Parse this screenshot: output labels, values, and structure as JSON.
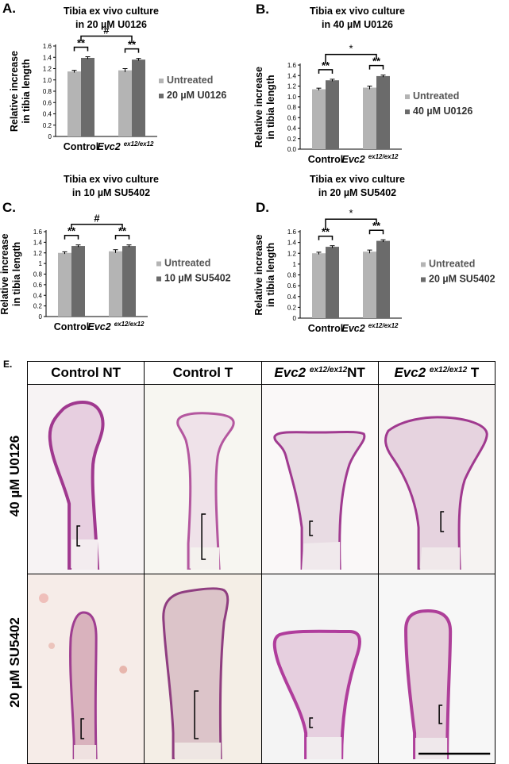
{
  "figure": {
    "colors": {
      "untreated": "#b4b4b4",
      "treated": "#6b6b6b",
      "tissue": "#b0469e",
      "cartilage": "#e9d8e5"
    }
  },
  "chart_data": [
    {
      "panel": "A.",
      "type": "bar",
      "title_line1": "Tibia ex vivo culture",
      "title_line2": "in 20 µM U0126",
      "ylabel_line1": "Relative increase",
      "ylabel_line2": "in tibia length",
      "categories": [
        {
          "name": "Control",
          "genotype": false
        },
        {
          "name": "Evc2",
          "sup": "ex12/ex12",
          "genotype": true
        }
      ],
      "series": [
        {
          "name": "Untreated",
          "values": [
            1.15,
            1.17
          ],
          "errors": [
            0.02,
            0.03
          ]
        },
        {
          "name": "20 µM U0126",
          "values": [
            1.39,
            1.36
          ],
          "errors": [
            0.02,
            0.02
          ]
        }
      ],
      "ylim": [
        0,
        1.6
      ],
      "yticks": [
        "0",
        "0.2",
        "0.4",
        "0.6",
        "0.8",
        "1.0",
        "1.2",
        "1.4",
        "1.6"
      ],
      "within_group_sig": [
        "**",
        "**"
      ],
      "between_group_sig": "#",
      "legend": "right"
    },
    {
      "panel": "B.",
      "type": "bar",
      "title_line1": "Tibia ex vivo culture",
      "title_line2": "in 40 µM U0126",
      "ylabel_line1": "Relative increase",
      "ylabel_line2": "in tibia length",
      "categories": [
        {
          "name": "Control",
          "genotype": false
        },
        {
          "name": "Evc2",
          "sup": "ex12/ex12",
          "genotype": true
        }
      ],
      "series": [
        {
          "name": "Untreated",
          "values": [
            1.14,
            1.17
          ],
          "errors": [
            0.02,
            0.03
          ]
        },
        {
          "name": "40 µM U0126",
          "values": [
            1.31,
            1.39
          ],
          "errors": [
            0.02,
            0.02
          ]
        }
      ],
      "ylim": [
        0,
        1.6
      ],
      "yticks": [
        "0.0",
        "0.2",
        "0.4",
        "0.6",
        "0.8",
        "1.0",
        "1.2",
        "1.4",
        "1.6"
      ],
      "within_group_sig": [
        "**",
        "**"
      ],
      "between_group_sig": "*",
      "legend": "right"
    },
    {
      "panel": "C.",
      "type": "bar",
      "title_line1": "Tibia ex vivo culture",
      "title_line2": "in 10 µM SU5402",
      "ylabel_line1": "Relative increase",
      "ylabel_line2": "in tibia length",
      "categories": [
        {
          "name": "Control",
          "genotype": false
        },
        {
          "name": "Evc2",
          "sup": "ex12/ex12",
          "genotype": true
        }
      ],
      "series": [
        {
          "name": "Untreated",
          "values": [
            1.2,
            1.23
          ],
          "errors": [
            0.02,
            0.03
          ]
        },
        {
          "name": "10 µM SU5402",
          "values": [
            1.33,
            1.33
          ],
          "errors": [
            0.02,
            0.02
          ]
        }
      ],
      "ylim": [
        0,
        1.6
      ],
      "yticks": [
        "0",
        "0.2",
        "0.4",
        "0.6",
        "0.8",
        "1",
        "1.2",
        "1.4",
        "1.6"
      ],
      "within_group_sig": [
        "**",
        "**"
      ],
      "between_group_sig": "#",
      "legend": "right"
    },
    {
      "panel": "D.",
      "type": "bar",
      "title_line1": "Tibia ex vivo culture",
      "title_line2": "in 20 µM SU5402",
      "ylabel_line1": "Relative increase",
      "ylabel_line2": "in tibia length",
      "categories": [
        {
          "name": "Control",
          "genotype": false
        },
        {
          "name": "Evc2",
          "sup": "ex12/ex12",
          "genotype": true
        }
      ],
      "series": [
        {
          "name": "Untreated",
          "values": [
            1.2,
            1.23
          ],
          "errors": [
            0.02,
            0.03
          ]
        },
        {
          "name": "20 µM SU5402",
          "values": [
            1.32,
            1.43
          ],
          "errors": [
            0.02,
            0.02
          ]
        }
      ],
      "ylim": [
        0,
        1.6
      ],
      "yticks": [
        "0",
        "0.2",
        "0.4",
        "0.6",
        "0.8",
        "1",
        "1.2",
        "1.4",
        "1.6"
      ],
      "within_group_sig": [
        "**",
        "**"
      ],
      "between_group_sig": "*",
      "legend": "right"
    }
  ],
  "histology": {
    "panel": "E.",
    "columns": [
      {
        "prefix": "Control NT",
        "italic": "",
        "sup": "",
        "suffix": ""
      },
      {
        "prefix": "Control T",
        "italic": "",
        "sup": "",
        "suffix": ""
      },
      {
        "prefix": "",
        "italic": "Evc2",
        "sup": "ex12/ex12",
        "suffix": "NT"
      },
      {
        "prefix": "",
        "italic": "Evc2",
        "sup": "ex12/ex12",
        "suffix": "T"
      }
    ],
    "rows": [
      "40 µM U0126",
      "20 µM SU5402"
    ]
  }
}
